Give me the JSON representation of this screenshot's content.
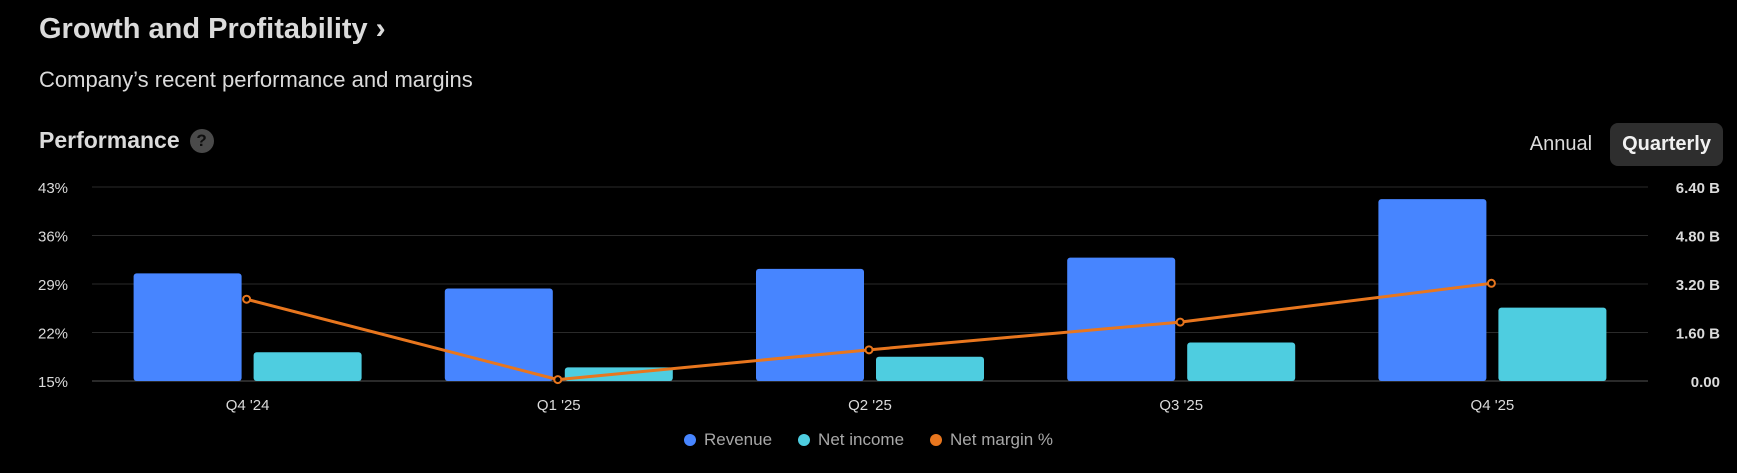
{
  "header": {
    "title": "Growth and Profitability",
    "title_chevron": "›",
    "subtitle": "Company’s recent performance and margins"
  },
  "section": {
    "title": "Performance",
    "help": "?"
  },
  "toggle": {
    "annual": "Annual",
    "quarterly": "Quarterly",
    "selected": "Quarterly"
  },
  "colors": {
    "revenue": "#4785ff",
    "net_income": "#4ecde0",
    "net_margin": "#e8761e",
    "grid": "#2a2a2a",
    "axis_text": "#dbdbdb"
  },
  "chart_data": {
    "type": "bar",
    "categories": [
      "Q4 '24",
      "Q1 '25",
      "Q2 '25",
      "Q3 '25",
      "Q4 '25"
    ],
    "series": [
      {
        "name": "Revenue",
        "axis": "right",
        "values": [
          3.55,
          3.05,
          3.7,
          4.07,
          6.0
        ]
      },
      {
        "name": "Net income",
        "axis": "right",
        "values": [
          0.95,
          0.45,
          0.8,
          1.27,
          2.42
        ]
      },
      {
        "name": "Net margin %",
        "axis": "left",
        "type": "line",
        "values": [
          26.8,
          15.2,
          19.5,
          23.5,
          29.1
        ]
      }
    ],
    "left_ticks": [
      "43%",
      "36%",
      "29%",
      "22%",
      "15%"
    ],
    "right_ticks": [
      "6.40 B",
      "4.80 B",
      "3.20 B",
      "1.60 B",
      "0.00"
    ],
    "left_ylim": [
      15,
      43
    ],
    "right_ylim": [
      0,
      6.4
    ],
    "grid": true,
    "legend_position": "bottom"
  }
}
